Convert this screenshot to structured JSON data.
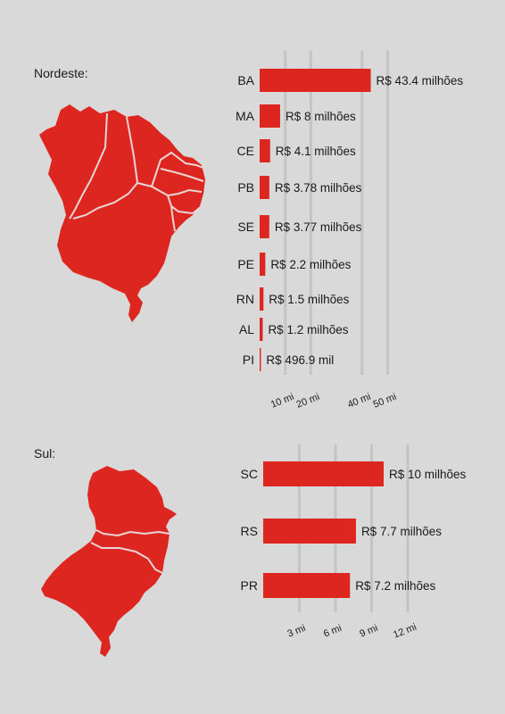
{
  "nordeste": {
    "title": "Nordeste:",
    "map_icon": "nordeste-region-map",
    "chart_data": {
      "type": "bar",
      "orientation": "horizontal",
      "categories": [
        "BA",
        "MA",
        "CE",
        "PB",
        "SE",
        "PE",
        "RN",
        "AL",
        "PI"
      ],
      "values": [
        43.4,
        8,
        4.1,
        3.78,
        3.77,
        2.2,
        1.5,
        1.2,
        0.4969
      ],
      "value_labels": [
        "R$ 43.4 milhões",
        "R$ 8 milhões",
        "R$ 4.1 milhões",
        "R$ 3.78 milhões",
        "R$ 3.77 milhões",
        "R$ 2.2 milhões",
        "R$ 1.5 milhões",
        "R$ 1.2 milhões",
        "R$ 496.9 mil"
      ],
      "x_ticks": [
        10,
        20,
        40,
        50
      ],
      "x_tick_labels": [
        "10 mi",
        "20 mi",
        "40 mi",
        "50 mi"
      ],
      "grid": true,
      "bar_color": "#dd2620"
    }
  },
  "sul": {
    "title": "Sul:",
    "map_icon": "sul-region-map",
    "chart_data": {
      "type": "bar",
      "orientation": "horizontal",
      "categories": [
        "SC",
        "RS",
        "PR"
      ],
      "values": [
        10,
        7.7,
        7.2
      ],
      "value_labels": [
        "R$ 10 milhões",
        "R$ 7.7 milhões",
        "R$ 7.2 milhões"
      ],
      "x_ticks": [
        3,
        6,
        9,
        12
      ],
      "x_tick_labels": [
        "3 mi",
        "6 mi",
        "9 mi",
        "12 mi"
      ],
      "grid": true,
      "bar_color": "#dd2620"
    }
  }
}
